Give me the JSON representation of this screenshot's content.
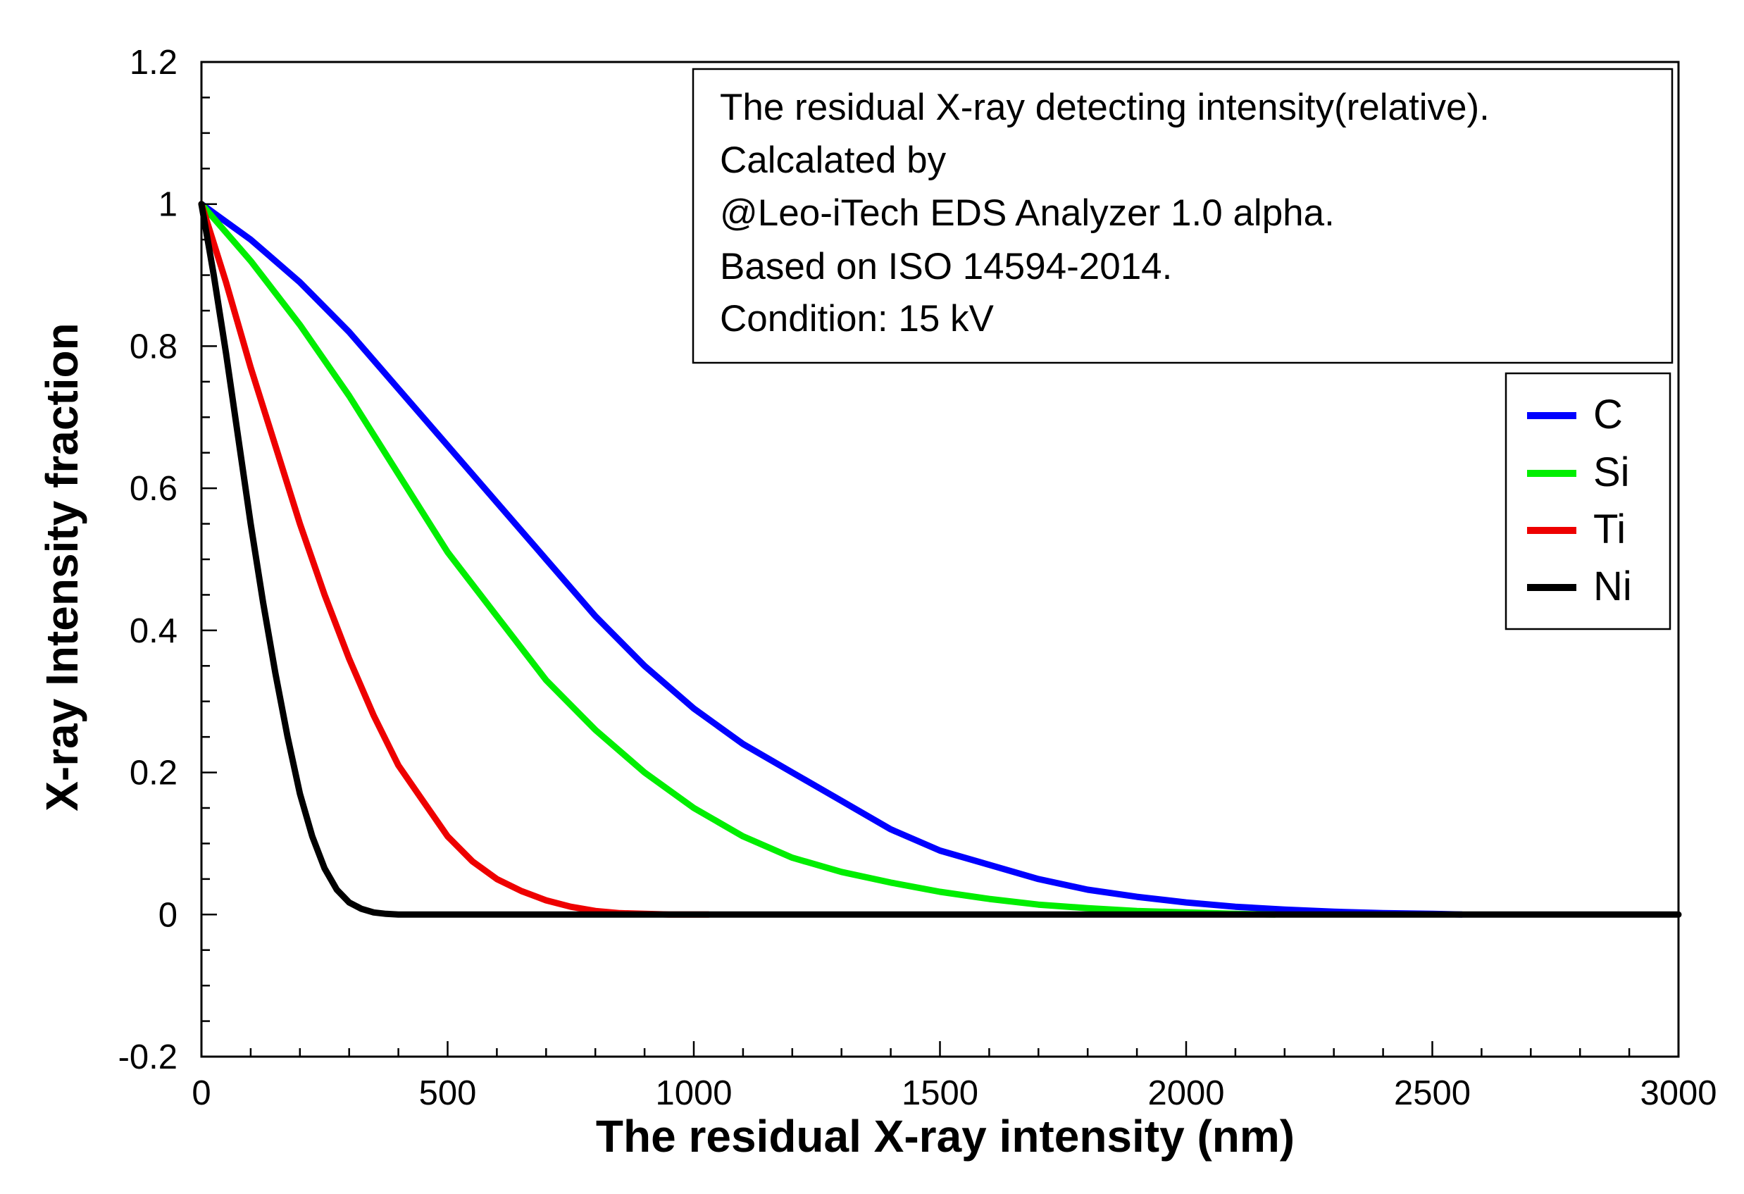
{
  "chart_data": {
    "type": "line",
    "title": "",
    "xlabel": "The residual X-ray intensity (nm)",
    "ylabel": "X-ray Intensity fraction",
    "xlim": [
      0,
      3000
    ],
    "ylim": [
      -0.2,
      1.2
    ],
    "x_ticks": [
      0,
      500,
      1000,
      1500,
      2000,
      2500,
      3000
    ],
    "y_ticks": [
      -0.2,
      0,
      0.2,
      0.4,
      0.6,
      0.8,
      1,
      1.2
    ],
    "x_tick_labels": [
      "0",
      "500",
      "1000",
      "1500",
      "2000",
      "2500",
      "3000"
    ],
    "y_tick_labels": [
      "-0.2",
      "0",
      "0.2",
      "0.4",
      "0.6",
      "0.8",
      "1",
      "1.2"
    ],
    "grid": false,
    "legend_position": "right",
    "annotation_lines": [
      "The residual X-ray detecting intensity(relative).",
      "Calcalated by",
      "@Leo-iTech EDS Analyzer 1.0 alpha.",
      "Based on ISO 14594-2014.",
      "Condition: 15 kV"
    ],
    "series": [
      {
        "name": "C",
        "color": "#0000ff",
        "x": [
          0,
          100,
          200,
          300,
          400,
          500,
          600,
          700,
          800,
          900,
          1000,
          1100,
          1200,
          1300,
          1400,
          1500,
          1600,
          1700,
          1800,
          1900,
          2000,
          2100,
          2200,
          2300,
          2400,
          2500,
          2560
        ],
        "y": [
          1.0,
          0.95,
          0.89,
          0.82,
          0.74,
          0.66,
          0.58,
          0.5,
          0.42,
          0.35,
          0.29,
          0.24,
          0.2,
          0.16,
          0.12,
          0.09,
          0.07,
          0.05,
          0.035,
          0.025,
          0.017,
          0.011,
          0.007,
          0.004,
          0.002,
          0.001,
          0.0
        ]
      },
      {
        "name": "Si",
        "color": "#00ee00",
        "x": [
          0,
          100,
          200,
          300,
          400,
          500,
          600,
          700,
          800,
          900,
          1000,
          1100,
          1200,
          1300,
          1400,
          1500,
          1600,
          1700,
          1800,
          1900,
          2000,
          2100,
          2180
        ],
        "y": [
          1.0,
          0.92,
          0.83,
          0.73,
          0.62,
          0.51,
          0.42,
          0.33,
          0.26,
          0.2,
          0.15,
          0.11,
          0.08,
          0.06,
          0.045,
          0.032,
          0.022,
          0.014,
          0.009,
          0.005,
          0.003,
          0.001,
          0.0
        ]
      },
      {
        "name": "Ti",
        "color": "#ee0000",
        "x": [
          0,
          50,
          100,
          150,
          200,
          250,
          300,
          350,
          400,
          450,
          500,
          550,
          600,
          650,
          700,
          750,
          800,
          850,
          900,
          950,
          1030
        ],
        "y": [
          1.0,
          0.89,
          0.77,
          0.66,
          0.55,
          0.45,
          0.36,
          0.28,
          0.21,
          0.16,
          0.11,
          0.075,
          0.05,
          0.033,
          0.02,
          0.011,
          0.005,
          0.002,
          0.001,
          0.0,
          0.0
        ]
      },
      {
        "name": "Ni",
        "color": "#000000",
        "x": [
          0,
          25,
          50,
          75,
          100,
          125,
          150,
          175,
          200,
          225,
          250,
          275,
          300,
          325,
          350,
          375,
          400,
          450,
          3000
        ],
        "y": [
          1.0,
          0.9,
          0.79,
          0.67,
          0.55,
          0.44,
          0.34,
          0.25,
          0.17,
          0.11,
          0.065,
          0.035,
          0.017,
          0.008,
          0.003,
          0.001,
          0.0,
          0.0,
          0.0
        ]
      }
    ]
  }
}
